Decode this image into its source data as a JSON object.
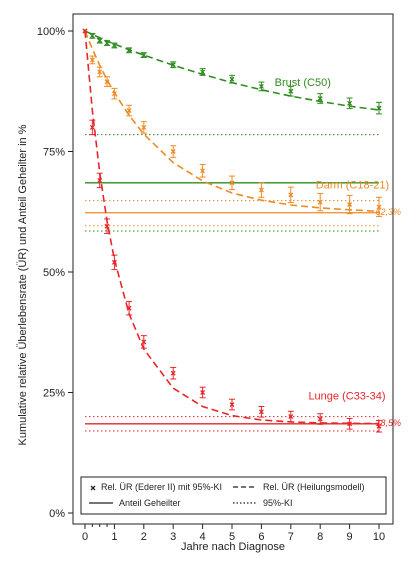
{
  "chart_data": {
    "type": "line",
    "ylabel": "Kumulative relative Überlebensrate (ÜR) und Anteil Geheilter in %",
    "xlabel": "Jahre nach Diagnose",
    "xlim": [
      0,
      10
    ],
    "ylim": [
      0,
      100
    ],
    "x_ticks": [
      {
        "value": 0,
        "label": "0"
      },
      {
        "value": 1,
        "label": "1"
      },
      {
        "value": 2,
        "label": "2"
      },
      {
        "value": 3,
        "label": "3"
      },
      {
        "value": 4,
        "label": "4"
      },
      {
        "value": 5,
        "label": "5"
      },
      {
        "value": 6,
        "label": "6"
      },
      {
        "value": 7,
        "label": "7"
      },
      {
        "value": 8,
        "label": "8"
      },
      {
        "value": 9,
        "label": "9"
      },
      {
        "value": 10,
        "label": "10"
      }
    ],
    "x_minor_ticks": [
      0.25,
      0.5,
      0.75
    ],
    "y_ticks": [
      {
        "value": 0,
        "label": "0%"
      },
      {
        "value": 25,
        "label": "25%"
      },
      {
        "value": 50,
        "label": "50%"
      },
      {
        "value": 75,
        "label": "75%"
      },
      {
        "value": 100,
        "label": "100%"
      }
    ],
    "grid": false,
    "legend_position": "bottom-inside",
    "legend": [
      {
        "label": "Rel. ÜR (Ederer II) mit 95%-KI",
        "style": "cross-marker"
      },
      {
        "label": "Rel. ÜR (Heilungsmodell)",
        "style": "dashed"
      },
      {
        "label": "Anteil Geheilter",
        "style": "solid"
      },
      {
        "label": "95%-KI",
        "style": "dotted"
      }
    ],
    "x": [
      0,
      0.25,
      0.5,
      0.75,
      1,
      1.5,
      2,
      3,
      4,
      5,
      6,
      7,
      8,
      9,
      10
    ],
    "series": [
      {
        "name": "Brust (C50)",
        "color": "#2e8b1f",
        "relative_survival": [
          100,
          99,
          98,
          97.5,
          97,
          96,
          95,
          93,
          91.5,
          90,
          88.5,
          87.5,
          86,
          85,
          84
        ],
        "ci_halfwidth": [
          0,
          0.5,
          0.5,
          0.5,
          0.5,
          0.5,
          0.5,
          0.6,
          0.7,
          0.8,
          0.9,
          1.0,
          1.0,
          1.1,
          1.2
        ],
        "model_curve": [
          100,
          99.3,
          98.6,
          97.9,
          97.3,
          96.1,
          95.0,
          92.9,
          91.0,
          89.3,
          87.8,
          86.5,
          85.4,
          84.4,
          83.6
        ],
        "cured_fraction": 68.5,
        "cured_ci": [
          58.5,
          78.5
        ],
        "label": "Brust (C50)",
        "cured_label": ""
      },
      {
        "name": "Darm (C18-21)",
        "color": "#f08a24",
        "relative_survival": [
          100,
          94,
          91.5,
          89.5,
          87,
          83.5,
          80,
          75,
          71,
          68.5,
          67,
          66,
          64.5,
          64,
          63.5
        ],
        "ci_halfwidth": [
          0,
          0.8,
          1.0,
          1.0,
          1.1,
          1.1,
          1.2,
          1.2,
          1.3,
          1.4,
          1.5,
          1.6,
          1.8,
          1.9,
          2.0
        ],
        "model_curve": [
          100,
          96.3,
          92.9,
          89.9,
          87.2,
          82.5,
          78.6,
          72.7,
          68.9,
          66.4,
          64.9,
          63.9,
          63.3,
          62.9,
          62.6
        ],
        "cured_fraction": 62.3,
        "cured_ci": [
          59.6,
          64.8
        ],
        "label": "Darm (C18-21)",
        "cured_label": "62,3%"
      },
      {
        "name": "Lunge (C33-34)",
        "color": "#e8262a",
        "relative_survival": [
          100,
          80,
          69,
          59.5,
          52,
          42.5,
          35.5,
          29,
          25,
          22.5,
          21,
          20,
          19.5,
          18.5,
          18
        ],
        "ci_halfwidth": [
          0,
          1.5,
          1.5,
          1.5,
          1.5,
          1.4,
          1.3,
          1.2,
          1.1,
          1.1,
          1.1,
          1.1,
          1.1,
          1.1,
          1.2
        ],
        "model_curve": [
          100,
          83.6,
          70.7,
          60.6,
          52.6,
          41.3,
          34.0,
          25.9,
          22.1,
          20.2,
          19.3,
          18.9,
          18.7,
          18.6,
          18.55
        ],
        "cured_fraction": 18.5,
        "cured_ci": [
          17.0,
          20.0
        ],
        "label": "Lunge (C33-34)",
        "cured_label": "18,5%"
      }
    ]
  }
}
